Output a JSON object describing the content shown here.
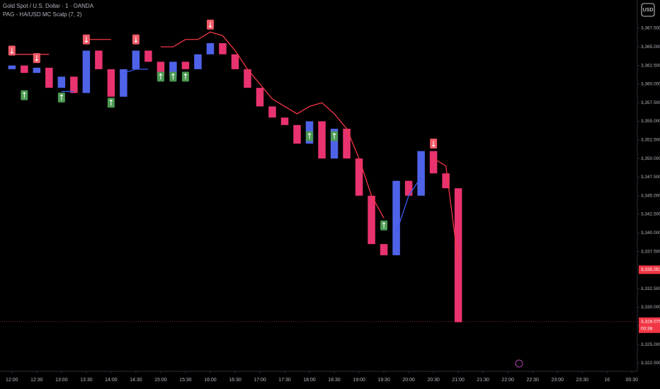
{
  "chart_data": {
    "type": "candlestick",
    "title": "Gold Spot / U.S. Dollar · 1 · OANDA",
    "subtitle": "PAG - HA/USD MC Scalp (7, 2)",
    "currency_button": "USD",
    "up_color": "#4f63e8",
    "down_color": "#e8336f",
    "x": [
      12,
      12.25,
      12.5,
      12.75,
      13,
      13.25,
      13.5,
      13.75,
      14,
      14.25,
      14.5,
      14.75,
      15,
      15.25,
      15.5,
      15.75,
      16,
      16.25,
      16.5,
      16.75,
      17,
      17.25,
      17.5,
      17.75,
      18,
      18.25,
      18.5,
      18.75,
      19,
      19.25,
      19.5,
      19.75,
      20,
      20.25,
      20.5,
      20.75,
      21
    ],
    "open": [
      3362,
      3362.5,
      3361.5,
      3362.2,
      3359.5,
      3361,
      3358.8,
      3364.5,
      3362,
      3358.3,
      3362,
      3364.5,
      3363,
      3361,
      3363,
      3362,
      3364,
      3365.5,
      3364,
      3362,
      3359.5,
      3357,
      3355.5,
      3354.5,
      3352,
      3355,
      3350,
      3354,
      3350,
      3345,
      3338.5,
      3337,
      3347,
      3345,
      3351,
      3348,
      3346
    ],
    "close": [
      3362.5,
      3361.5,
      3362.2,
      3359.5,
      3361,
      3358.8,
      3364.5,
      3362,
      3358.3,
      3362,
      3364.5,
      3363,
      3361,
      3363,
      3362,
      3364,
      3365.5,
      3364,
      3362,
      3359.5,
      3357,
      3355.5,
      3354.5,
      3352,
      3355,
      3350,
      3354,
      3350,
      3345,
      3338.5,
      3337,
      3347,
      3345,
      3351,
      3348,
      3346,
      3328
    ],
    "series": [
      {
        "color": "#3d5af1",
        "values": [
          null,
          null,
          null,
          null,
          3359,
          3359,
          null,
          null,
          null,
          3361.5,
          3362,
          3362,
          null,
          null,
          null,
          null,
          null,
          null,
          null,
          null,
          null,
          null,
          null,
          null,
          null,
          null,
          null,
          null,
          null,
          null,
          null,
          3340,
          3345,
          3347.5,
          null,
          null,
          null
        ]
      },
      {
        "color": "#f23645",
        "values": [
          3364,
          3364,
          3364,
          3364,
          null,
          null,
          3366,
          3366,
          3366,
          null,
          null,
          null,
          3365,
          3365,
          3366,
          3366,
          3367,
          3366.5,
          3364.5,
          3362,
          3360,
          3358,
          3357,
          3356,
          3357,
          3357.5,
          3356,
          3354,
          3350,
          3345,
          3342,
          null,
          null,
          null,
          3350,
          3349,
          3336
        ]
      }
    ],
    "sell_signals": {
      "color": "#f05a67",
      "x": [
        12,
        12.5,
        13.5,
        14.5,
        16,
        20.5
      ],
      "values": [
        3364.5,
        3363.5,
        3366,
        3366,
        3368,
        3352
      ]
    },
    "buy_signals": {
      "color": "#4c9a52",
      "x": [
        12.25,
        13,
        14,
        15,
        15.25,
        15.5,
        18,
        18.5,
        19.5
      ],
      "values": [
        3358.5,
        3358.2,
        3357.5,
        3361,
        3361,
        3361,
        3353,
        3353,
        3341
      ]
    },
    "price_labels": [
      {
        "value": 3335.051,
        "label": "3,335.051",
        "color": "#f23645"
      },
      {
        "value": 3328.075,
        "label": "3,328.075",
        "color": "#f23645"
      }
    ],
    "countdown": "00:38",
    "xlim": [
      11.76,
      24.61
    ],
    "ylim": [
      3321.4,
      3371.3
    ],
    "xticks": [
      {
        "value": 12,
        "label": "12:00"
      },
      {
        "value": 12.5,
        "label": "12:30"
      },
      {
        "value": 13,
        "label": "13:00"
      },
      {
        "value": 13.5,
        "label": "13:30"
      },
      {
        "value": 14,
        "label": "14:00"
      },
      {
        "value": 14.5,
        "label": "14:30"
      },
      {
        "value": 15,
        "label": "15:00"
      },
      {
        "value": 15.5,
        "label": "15:30"
      },
      {
        "value": 16,
        "label": "16:00"
      },
      {
        "value": 16.5,
        "label": "16:30"
      },
      {
        "value": 17,
        "label": "17:00"
      },
      {
        "value": 17.5,
        "label": "17:30"
      },
      {
        "value": 18,
        "label": "18:00"
      },
      {
        "value": 18.5,
        "label": "18:30"
      },
      {
        "value": 19,
        "label": "19:00"
      },
      {
        "value": 19.5,
        "label": "19:30"
      },
      {
        "value": 20,
        "label": "20:00"
      },
      {
        "value": 20.5,
        "label": "20:30"
      },
      {
        "value": 21,
        "label": "21:00"
      },
      {
        "value": 21.5,
        "label": "21:30"
      },
      {
        "value": 22,
        "label": "22:00"
      },
      {
        "value": 22.5,
        "label": "22:30"
      },
      {
        "value": 23,
        "label": "23:00"
      },
      {
        "value": 23.5,
        "label": "23:30"
      },
      {
        "value": 24,
        "label": "16"
      },
      {
        "value": 24.5,
        "label": "00:30"
      }
    ],
    "yticks": [
      {
        "value": 3322.5,
        "label": "3,322.500"
      },
      {
        "value": 3325,
        "label": "3,325.000"
      },
      {
        "value": 3327.5,
        "label": "3,327.500"
      },
      {
        "value": 3330,
        "label": "3,330.000"
      },
      {
        "value": 3332.5,
        "label": "3,332.500"
      },
      {
        "value": 3335,
        "label": "3,335.000"
      },
      {
        "value": 3337.5,
        "label": "3,337.500"
      },
      {
        "value": 3340,
        "label": "3,340.000"
      },
      {
        "value": 3342.5,
        "label": "3,342.500"
      },
      {
        "value": 3345,
        "label": "3,345.000"
      },
      {
        "value": 3347.5,
        "label": "3,347.500"
      },
      {
        "value": 3350,
        "label": "3,350.000"
      },
      {
        "value": 3352.5,
        "label": "3,352.500"
      },
      {
        "value": 3355,
        "label": "3,355.000"
      },
      {
        "value": 3357.5,
        "label": "3,357.500"
      },
      {
        "value": 3360,
        "label": "3,360.000"
      },
      {
        "value": 3362.5,
        "label": "3,362.500"
      },
      {
        "value": 3365,
        "label": "3,365.000"
      },
      {
        "value": 3367.5,
        "label": "3,367.500"
      }
    ]
  }
}
